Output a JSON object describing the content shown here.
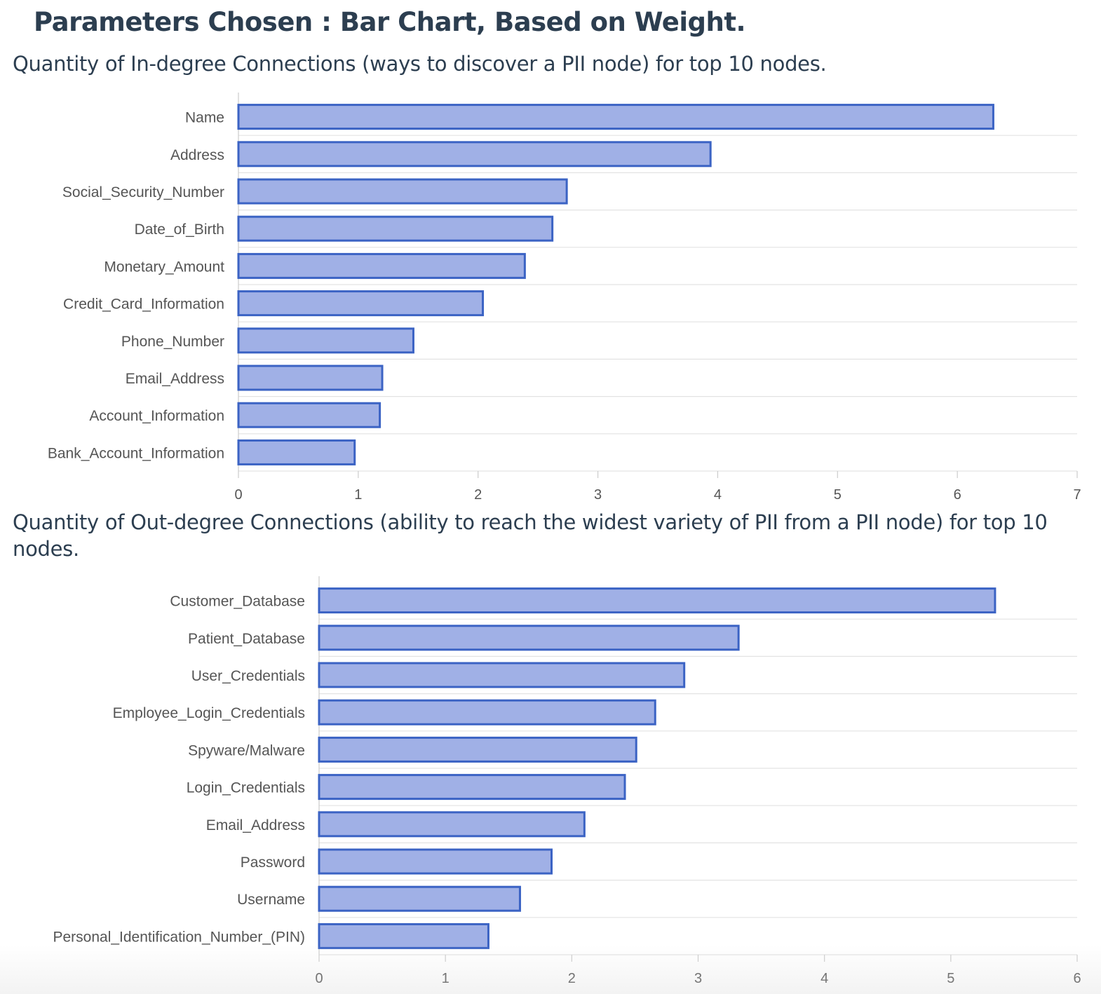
{
  "page": {
    "title": "Parameters Chosen : Bar Chart, Based on Weight."
  },
  "colors": {
    "bar_fill": "#a0b0e6",
    "bar_stroke": "#3b63c4",
    "grid": "#e3e3e3",
    "axis": "#cccccc",
    "label": "#555555"
  },
  "chart_data": [
    {
      "type": "bar",
      "orientation": "horizontal",
      "title": "Quantity of In-degree Connections (ways to discover a PII node) for top 10 nodes.",
      "categories": [
        "Name",
        "Address",
        "Social_Security_Number",
        "Date_of_Birth",
        "Monetary_Amount",
        "Credit_Card_Information",
        "Phone_Number",
        "Email_Address",
        "Account_Information",
        "Bank_Account_Information"
      ],
      "values": [
        6.3,
        3.94,
        2.74,
        2.62,
        2.39,
        2.04,
        1.46,
        1.2,
        1.18,
        0.97
      ],
      "xlim": [
        0,
        7
      ],
      "xticks": [
        "0",
        "1",
        "2",
        "3",
        "4",
        "5",
        "6",
        "7"
      ],
      "xlabel": "",
      "ylabel": "",
      "grid": true
    },
    {
      "type": "bar",
      "orientation": "horizontal",
      "title": "Quantity of Out-degree Connections (ability to reach the widest variety of PII from a PII node) for top 10 nodes.",
      "categories": [
        "Customer_Database",
        "Patient_Database",
        "User_Credentials",
        "Employee_Login_Credentials",
        "Spyware/Malware",
        "Login_Credentials",
        "Email_Address",
        "Password",
        "Username",
        "Personal_Identification_Number_(PIN)"
      ],
      "values": [
        5.35,
        3.32,
        2.89,
        2.66,
        2.51,
        2.42,
        2.1,
        1.84,
        1.59,
        1.34
      ],
      "xlim": [
        0,
        6
      ],
      "xticks": [
        "0",
        "1",
        "2",
        "3",
        "4",
        "5",
        "6"
      ],
      "xlabel": "",
      "ylabel": "",
      "grid": true
    }
  ]
}
